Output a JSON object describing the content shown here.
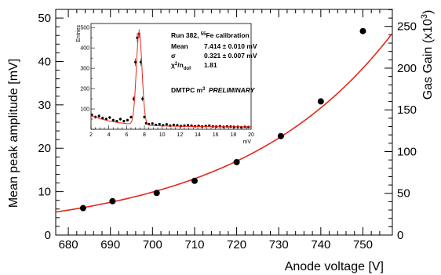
{
  "chart_data": {
    "type": "scatter",
    "xlabel": "Anode voltage [V]",
    "ylabel": "Mean peak amplitude [mV]",
    "y2label": "Gas Gain (x10³)",
    "xlim": [
      677,
      757
    ],
    "ylim": [
      0,
      52
    ],
    "y2lim": [
      0,
      270.4
    ],
    "x_ticks": [
      680,
      690,
      700,
      710,
      720,
      730,
      740,
      750
    ],
    "y_ticks": [
      0,
      10,
      20,
      30,
      40,
      50
    ],
    "y2_ticks": [
      0,
      50,
      100,
      150,
      200,
      250
    ],
    "series": [
      {
        "type": "scatter",
        "x": [
          683.5,
          690.5,
          701,
          710,
          720,
          730.5,
          740,
          750
        ],
        "y": [
          6.2,
          7.8,
          9.7,
          12.5,
          16.8,
          22.8,
          30.8,
          47.0
        ]
      }
    ],
    "fit": {
      "type": "exponential",
      "color": "#e8261c",
      "x_start": 677,
      "x_end": 757,
      "y_start": 5.3,
      "y_end": 46.5
    },
    "marker_color": "#000000",
    "inset": {
      "type": "histogram",
      "ylabel": "Entries",
      "xlabel": "mV",
      "xlim": [
        2,
        20
      ],
      "ylim": [
        0,
        520
      ],
      "x_ticks": [
        2,
        4,
        6,
        8,
        10,
        12,
        14,
        16,
        18,
        20
      ],
      "y_ticks": [
        100,
        200,
        300,
        400,
        500
      ],
      "title": "Run 382, ⁵⁵Fe calibration",
      "stats": [
        {
          "label": "Mean",
          "value": "7.414 ± 0.010 mV"
        },
        {
          "label": "σ",
          "value": "0.321 ± 0.007 mV"
        },
        {
          "label": "χ²/n_dof",
          "value": "1.81"
        }
      ],
      "footer_a": "DMTPC m³",
      "footer_b": "PRELIMINARY",
      "x": [
        2.1,
        2.5,
        2.9,
        3.3,
        3.7,
        4.1,
        4.5,
        4.9,
        5.3,
        5.7,
        6.1,
        6.5,
        6.8,
        7.0,
        7.2,
        7.4,
        7.6,
        7.8,
        8.0,
        8.2,
        8.5,
        8.9,
        9.3,
        9.7,
        10.1,
        10.5,
        10.9,
        11.3,
        11.7,
        12.1,
        12.5,
        12.9,
        13.3,
        13.7,
        14.1,
        14.5,
        14.9,
        15.3,
        15.7,
        16.1,
        16.5,
        16.9,
        17.3,
        17.7,
        18.1,
        18.5,
        18.9,
        19.3,
        19.7
      ],
      "counts": [
        70,
        60,
        65,
        55,
        50,
        58,
        45,
        40,
        50,
        40,
        45,
        60,
        150,
        330,
        450,
        470,
        330,
        150,
        60,
        30,
        25,
        28,
        22,
        25,
        20,
        24,
        18,
        22,
        20,
        16,
        18,
        20,
        18,
        15,
        17,
        14,
        16,
        18,
        14,
        13,
        15,
        12,
        14,
        13,
        11,
        12,
        10,
        12,
        11
      ],
      "fit_peak": {
        "mean": 7.414,
        "sigma": 0.321,
        "amp": 455
      }
    }
  }
}
